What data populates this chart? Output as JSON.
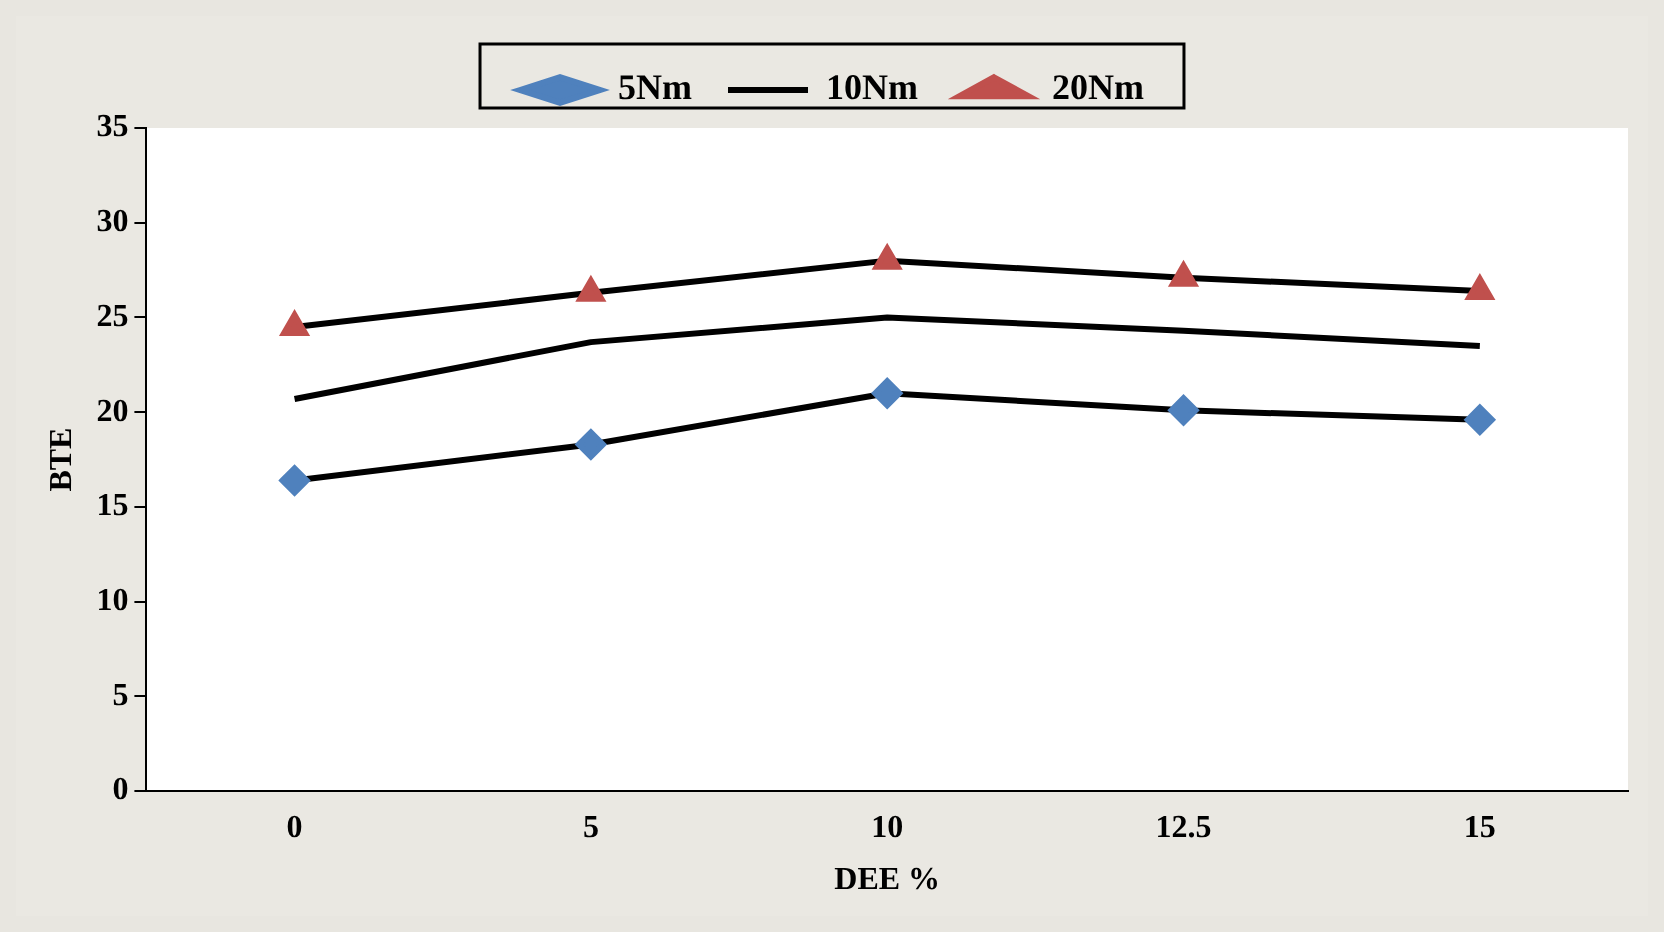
{
  "chart_data": {
    "type": "line",
    "xlabel": "DEE %",
    "ylabel": "BTE",
    "categories": [
      "0",
      "5",
      "10",
      "12.5",
      "15"
    ],
    "series": [
      {
        "name": "5Nm",
        "color": "#4f81bd",
        "marker": "diamond",
        "values": [
          16.4,
          18.3,
          21.0,
          20.1,
          19.6
        ]
      },
      {
        "name": "10Nm",
        "color": "#000000",
        "marker": "none",
        "values": [
          20.7,
          23.7,
          25.0,
          24.3,
          23.5
        ]
      },
      {
        "name": "20Nm",
        "color": "#c0504d",
        "marker": "triangle",
        "values": [
          24.5,
          26.3,
          28.0,
          27.1,
          26.4
        ]
      }
    ],
    "ylim": [
      0,
      35
    ],
    "yticks": [
      0,
      5,
      10,
      15,
      20,
      25,
      30,
      35
    ],
    "grid": false,
    "legend": "top",
    "line_style": "solid"
  }
}
